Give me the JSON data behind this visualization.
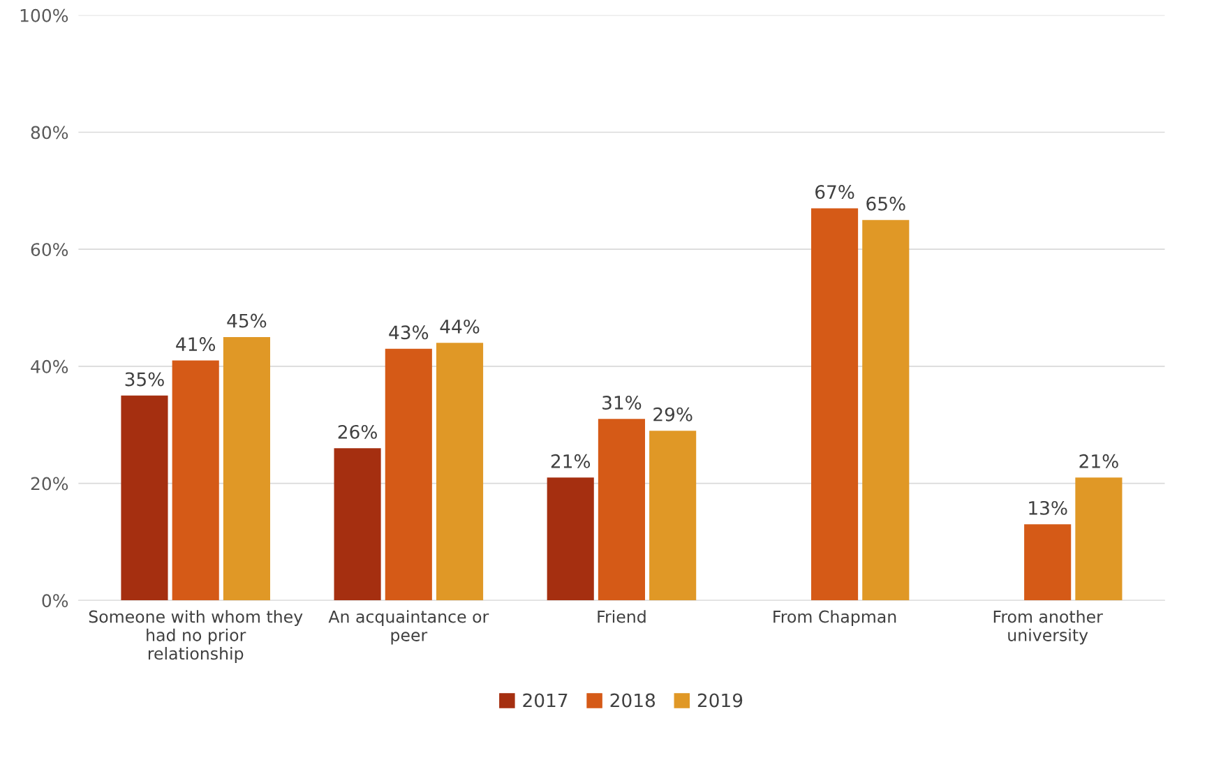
{
  "chart_data": {
    "type": "bar",
    "categories": [
      "Someone with whom they had no prior relationship",
      "An acquaintance or peer",
      "Friend",
      "From Chapman",
      "From another university"
    ],
    "series": [
      {
        "name": "2017",
        "color": "#a52f10",
        "values": [
          35,
          26,
          21,
          null,
          null
        ],
        "value_labels": [
          "35%",
          "26%",
          "21%",
          null,
          null
        ]
      },
      {
        "name": "2018",
        "color": "#d55a17",
        "values": [
          41,
          43,
          31,
          67,
          13
        ],
        "value_labels": [
          "41%",
          "43%",
          "31%",
          "67%",
          "13%"
        ]
      },
      {
        "name": "2019",
        "color": "#e09826",
        "values": [
          45,
          44,
          29,
          65,
          21
        ],
        "value_labels": [
          "45%",
          "44%",
          "29%",
          "65%",
          "21%"
        ]
      }
    ],
    "ylim": [
      0,
      100
    ],
    "yticks": [
      {
        "value": 0,
        "label": "0%"
      },
      {
        "value": 20,
        "label": "20%"
      },
      {
        "value": 40,
        "label": "40%"
      },
      {
        "value": 60,
        "label": "60%"
      },
      {
        "value": 80,
        "label": "80%"
      },
      {
        "value": 100,
        "label": "100%"
      }
    ],
    "grid": "y",
    "legend": "bottom"
  }
}
